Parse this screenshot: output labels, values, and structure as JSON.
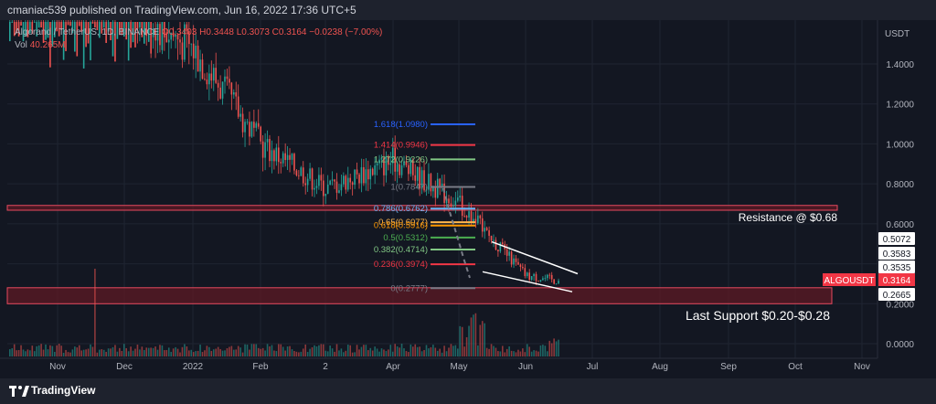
{
  "header": {
    "publish_line": "cmaniac539 published on TradingView.com, Jun 16, 2022 17:36 UTC+5"
  },
  "legend": {
    "symbol": "Algorand / TetherUS, 1D, BINANCE",
    "ohlc": "O0.3403 H0.3448 L0.3073 C0.3164 −0.0238 (−7.00%)",
    "volume_label": "Vol",
    "volume_value": "40.265M"
  },
  "footer": {
    "brand": "TradingView"
  },
  "colors": {
    "background": "#131722",
    "up": "#26a69a",
    "down": "#ef5350",
    "zone_fill": "#5d1a24",
    "zone_border": "#e84a5f",
    "fib_1618": "#2962ff",
    "fib_1414": "#f23645",
    "fib_1272": "#81c784",
    "fib_1": "#787b86",
    "fib_0786": "#64b5f6",
    "fib_065": "#ffb74d",
    "fib_0618": "#ff9800",
    "fib_05": "#4caf50",
    "fib_0382": "#81c784",
    "fib_0236": "#f23645",
    "fib_0": "#787b86",
    "wedge": "#ffffff"
  },
  "chart_data": {
    "type": "candlestick",
    "symbol": "ALGOUSDT",
    "y_axis_label": "USDT",
    "y_range": [
      -0.02,
      1.62
    ],
    "y_ticks": [
      "1.4000",
      "1.2000",
      "1.0000",
      "0.8000",
      "0.6000",
      "0.4000",
      "0.2000",
      "0.0000"
    ],
    "x_ticks": [
      "Nov",
      "Dec",
      "2022",
      "Feb",
      "2",
      "Apr",
      "May",
      "Jun",
      "Jul",
      "Aug",
      "Sep",
      "Oct",
      "Nov"
    ],
    "price_path": [
      [
        "Nov",
        1.82
      ],
      [
        "Dec",
        1.72
      ],
      [
        "2022",
        1.48
      ],
      [
        "Feb",
        1.0
      ],
      [
        "2",
        0.78
      ],
      [
        "Apr",
        0.92
      ],
      [
        "May",
        0.7
      ],
      [
        "Jun",
        0.34
      ],
      [
        "Jun 16",
        0.3164
      ]
    ],
    "volume_tallest": "Nov",
    "last_price": "0.3164",
    "current_symbol": "ALGOUSDT",
    "price_markers": [
      "0.5072",
      "0.3583",
      "0.3535",
      "0.2665"
    ],
    "fibonacci": [
      {
        "label": "1.618(1.0980)",
        "price": 1.098
      },
      {
        "label": "1.414(0.9946)",
        "price": 0.9946
      },
      {
        "label": "1.272(0.9226)",
        "price": 0.9226
      },
      {
        "label": "1(0.7847)",
        "price": 0.7847
      },
      {
        "label": "0.786(0.6762)",
        "price": 0.6762
      },
      {
        "label": "0.65(0.6077)",
        "price": 0.6077
      },
      {
        "label": "0.618(0.5916)",
        "price": 0.5916
      },
      {
        "label": "0.5(0.5312)",
        "price": 0.5312
      },
      {
        "label": "0.382(0.4714)",
        "price": 0.4714
      },
      {
        "label": "0.236(0.3974)",
        "price": 0.3974
      },
      {
        "label": "0(0.2777)",
        "price": 0.2777
      }
    ],
    "zones": [
      {
        "name": "resistance",
        "top": 0.692,
        "bottom": 0.668
      },
      {
        "name": "support",
        "top": 0.28,
        "bottom": 0.2
      }
    ],
    "annotations": [
      "Resistance @ $0.68",
      "Last Support $0.20-$0.28"
    ],
    "wedge": {
      "upper": [
        [
          "May",
          0.51
        ],
        [
          "Jun 20",
          0.35
        ]
      ],
      "lower": [
        [
          "May",
          0.36
        ],
        [
          "Jun 20",
          0.26
        ]
      ]
    }
  }
}
